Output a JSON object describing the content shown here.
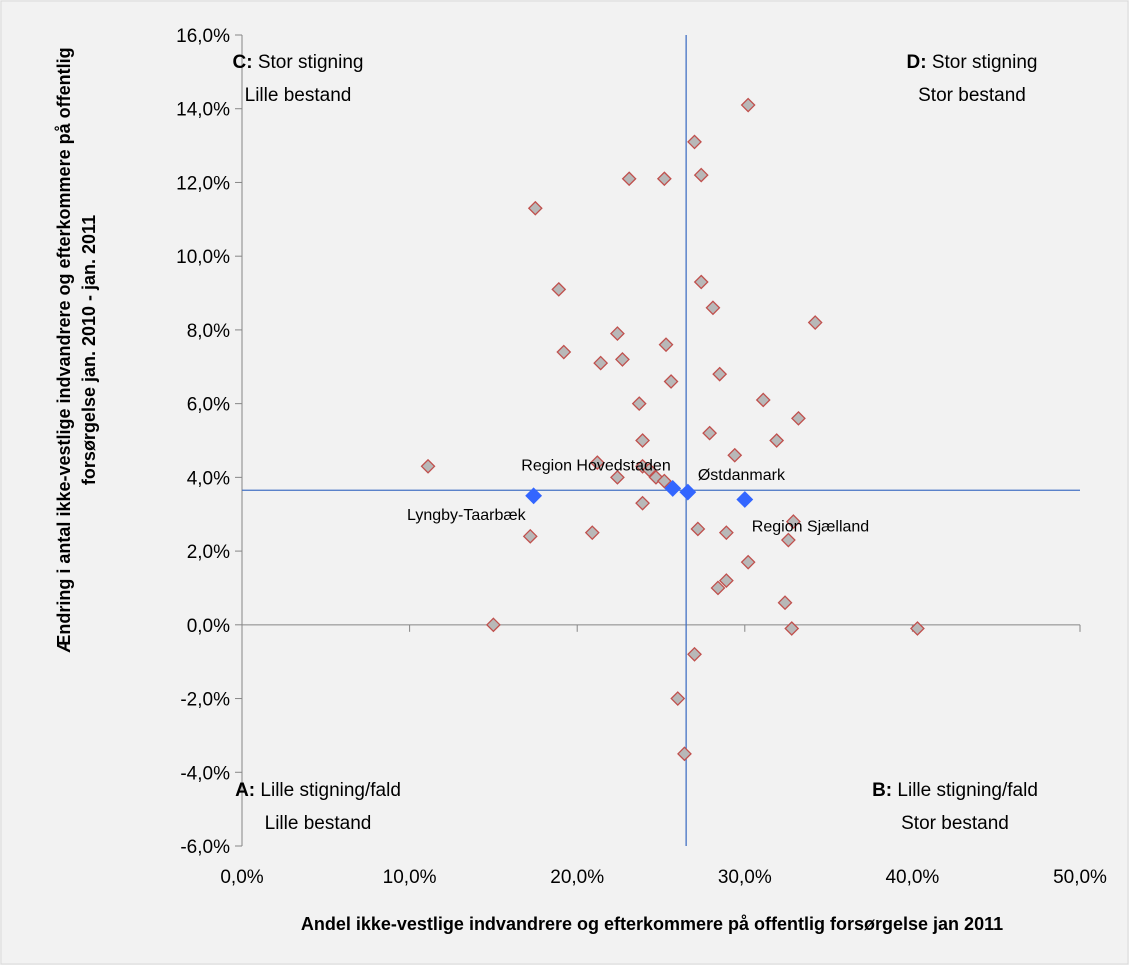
{
  "chart_data": {
    "type": "scatter",
    "xlabel": "Andel ikke-vestlige indvandrere og efterkommere på offentlig forsørgelse jan 2011",
    "ylabel_lines": [
      "Ændring i antal ikke-vestlige indvandrere og efterkommere på offentlig",
      "forsørgelse jan. 2010 - jan. 2011"
    ],
    "xlim": [
      0.0,
      0.5
    ],
    "ylim": [
      -0.06,
      0.16
    ],
    "x_ticks": [
      0.0,
      0.1,
      0.2,
      0.3,
      0.4,
      0.5
    ],
    "x_tick_labels": [
      "0,0%",
      "10,0%",
      "20,0%",
      "30,0%",
      "40,0%",
      "50,0%"
    ],
    "y_ticks": [
      -0.06,
      -0.04,
      -0.02,
      0.0,
      0.02,
      0.04,
      0.06,
      0.08,
      0.1,
      0.12,
      0.14,
      0.16
    ],
    "y_tick_labels": [
      "-6,0%",
      "-4,0%",
      "-2,0%",
      "0,0%",
      "2,0%",
      "4,0%",
      "6,0%",
      "8,0%",
      "10,0%",
      "12,0%",
      "14,0%",
      "16,0%"
    ],
    "grid": false,
    "reference_lines": {
      "x": 0.265,
      "y": 0.0365,
      "color": "#4472c4"
    },
    "quadrants": [
      {
        "letter": "C:",
        "line1": "Stor stigning",
        "line2": "Lille bestand",
        "position": "top-left"
      },
      {
        "letter": "D:",
        "line1": "Stor stigning",
        "line2": "Stor bestand",
        "position": "top-right"
      },
      {
        "letter": "A:",
        "line1": "Lille stigning/fald",
        "line2": "Lille bestand",
        "position": "bottom-left"
      },
      {
        "letter": "B:",
        "line1": "Lille stigning/fald",
        "line2": "Stor bestand",
        "position": "bottom-right"
      }
    ],
    "series": [
      {
        "marker": "diamond",
        "fill": "#b8b8b8",
        "stroke": "#c0504d",
        "points": [
          {
            "x": 0.302,
            "y": 0.141
          },
          {
            "x": 0.27,
            "y": 0.131
          },
          {
            "x": 0.231,
            "y": 0.121
          },
          {
            "x": 0.252,
            "y": 0.121
          },
          {
            "x": 0.274,
            "y": 0.122
          },
          {
            "x": 0.175,
            "y": 0.113
          },
          {
            "x": 0.274,
            "y": 0.093
          },
          {
            "x": 0.189,
            "y": 0.091
          },
          {
            "x": 0.281,
            "y": 0.086
          },
          {
            "x": 0.342,
            "y": 0.082
          },
          {
            "x": 0.224,
            "y": 0.079
          },
          {
            "x": 0.253,
            "y": 0.076
          },
          {
            "x": 0.192,
            "y": 0.074
          },
          {
            "x": 0.227,
            "y": 0.072
          },
          {
            "x": 0.214,
            "y": 0.071
          },
          {
            "x": 0.285,
            "y": 0.068
          },
          {
            "x": 0.256,
            "y": 0.066
          },
          {
            "x": 0.311,
            "y": 0.061
          },
          {
            "x": 0.237,
            "y": 0.06
          },
          {
            "x": 0.332,
            "y": 0.056
          },
          {
            "x": 0.279,
            "y": 0.052
          },
          {
            "x": 0.239,
            "y": 0.05
          },
          {
            "x": 0.319,
            "y": 0.05
          },
          {
            "x": 0.294,
            "y": 0.046
          },
          {
            "x": 0.212,
            "y": 0.044
          },
          {
            "x": 0.239,
            "y": 0.043
          },
          {
            "x": 0.111,
            "y": 0.043
          },
          {
            "x": 0.224,
            "y": 0.04
          },
          {
            "x": 0.243,
            "y": 0.042
          },
          {
            "x": 0.247,
            "y": 0.04
          },
          {
            "x": 0.252,
            "y": 0.039
          },
          {
            "x": 0.239,
            "y": 0.033
          },
          {
            "x": 0.329,
            "y": 0.028
          },
          {
            "x": 0.272,
            "y": 0.026
          },
          {
            "x": 0.289,
            "y": 0.025
          },
          {
            "x": 0.172,
            "y": 0.024
          },
          {
            "x": 0.209,
            "y": 0.025
          },
          {
            "x": 0.326,
            "y": 0.023
          },
          {
            "x": 0.302,
            "y": 0.017
          },
          {
            "x": 0.289,
            "y": 0.012
          },
          {
            "x": 0.284,
            "y": 0.01
          },
          {
            "x": 0.324,
            "y": 0.006
          },
          {
            "x": 0.15,
            "y": 0.0
          },
          {
            "x": 0.328,
            "y": -0.001
          },
          {
            "x": 0.403,
            "y": -0.001
          },
          {
            "x": 0.27,
            "y": -0.008
          },
          {
            "x": 0.26,
            "y": -0.02
          },
          {
            "x": 0.264,
            "y": -0.035
          }
        ]
      },
      {
        "marker": "diamond",
        "fill": "#3366ff",
        "stroke": "#3366ff",
        "points": [
          {
            "x": 0.174,
            "y": 0.035,
            "label": "Lyngby-Taarbæk",
            "label_side": "below-left"
          },
          {
            "x": 0.257,
            "y": 0.037,
            "label": "Region Hovedstaden",
            "label_side": "above-left"
          },
          {
            "x": 0.266,
            "y": 0.036,
            "label": "Østdanmark",
            "label_side": "above-right"
          },
          {
            "x": 0.3,
            "y": 0.034,
            "label": "Region Sjælland",
            "label_side": "below-right"
          }
        ]
      }
    ]
  }
}
